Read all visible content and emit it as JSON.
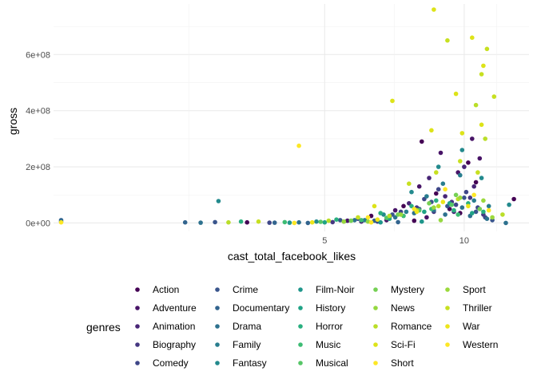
{
  "chart_data": {
    "type": "scatter",
    "title": "",
    "xlabel": "cast_total_facebook_likes",
    "ylabel": "gross",
    "x_scale": "log",
    "xlim": [
      1.3,
      13.8
    ],
    "ylim": [
      -30000000,
      780000000
    ],
    "x_ticks": [
      5,
      10
    ],
    "x_tick_labels": [
      "5",
      "10"
    ],
    "y_ticks": [
      0,
      200000000,
      400000000,
      600000000
    ],
    "y_tick_labels": [
      "0e+00",
      "2e+08",
      "4e+08",
      "6e+08"
    ],
    "grid": true,
    "legend": {
      "title": "genres",
      "position": "bottom",
      "columns": 5,
      "entries": [
        "Action",
        "Adventure",
        "Animation",
        "Biography",
        "Comedy",
        "Crime",
        "Documentary",
        "Drama",
        "Family",
        "Fantasy",
        "Film-Noir",
        "History",
        "Horror",
        "Music",
        "Musical",
        "Mystery",
        "News",
        "Romance",
        "Sci-Fi",
        "Short",
        "Sport",
        "Thriller",
        "War",
        "Western"
      ],
      "colors": [
        "#440154",
        "#481467",
        "#482576",
        "#453781",
        "#3f4788",
        "#39558c",
        "#32648e",
        "#2d718e",
        "#287d8e",
        "#238a8d",
        "#1f968b",
        "#20a386",
        "#29af7f",
        "#3dbc74",
        "#56c667",
        "#75d054",
        "#95d840",
        "#bade28",
        "#dde318",
        "#fde725",
        "#9bd93c",
        "#c7e020",
        "#ede51b",
        "#fde725"
      ]
    },
    "series": [
      {
        "name": "Action",
        "points": [
          [
            3.4,
            2000000
          ],
          [
            6.3,
            25000000
          ],
          [
            7.4,
            60000000
          ],
          [
            8.1,
            290000000
          ],
          [
            8.7,
            105000000
          ],
          [
            9.3,
            50000000
          ],
          [
            10.2,
            215000000
          ],
          [
            10.6,
            145000000
          ],
          [
            12.8,
            85000000
          ],
          [
            9.8,
            35000000
          ],
          [
            7.8,
            8000000
          ]
        ]
      },
      {
        "name": "Adventure",
        "points": [
          [
            5.6,
            8000000
          ],
          [
            7.1,
            45000000
          ],
          [
            8.0,
            130000000
          ],
          [
            8.9,
            250000000
          ],
          [
            9.7,
            180000000
          ],
          [
            10.4,
            300000000
          ],
          [
            10.8,
            230000000
          ],
          [
            8.3,
            20000000
          ],
          [
            6.8,
            10000000
          ]
        ]
      },
      {
        "name": "Animation",
        "points": [
          [
            6.0,
            5000000
          ],
          [
            7.6,
            70000000
          ],
          [
            8.4,
            160000000
          ],
          [
            9.1,
            95000000
          ],
          [
            10.0,
            200000000
          ],
          [
            10.5,
            130000000
          ],
          [
            9.5,
            40000000
          ]
        ]
      },
      {
        "name": "Biography",
        "points": [
          [
            5.2,
            3000000
          ],
          [
            6.9,
            20000000
          ],
          [
            7.9,
            55000000
          ],
          [
            8.6,
            40000000
          ],
          [
            9.4,
            75000000
          ],
          [
            10.3,
            90000000
          ],
          [
            11.0,
            30000000
          ]
        ]
      },
      {
        "name": "Comedy",
        "points": [
          [
            3.8,
            1000000
          ],
          [
            5.9,
            15000000
          ],
          [
            7.3,
            40000000
          ],
          [
            8.2,
            85000000
          ],
          [
            8.8,
            120000000
          ],
          [
            9.6,
            65000000
          ],
          [
            10.1,
            110000000
          ],
          [
            10.7,
            55000000
          ],
          [
            11.1,
            20000000
          ],
          [
            6.5,
            5000000
          ]
        ]
      },
      {
        "name": "Crime",
        "points": [
          [
            2.9,
            3000000
          ],
          [
            5.4,
            10000000
          ],
          [
            7.0,
            30000000
          ],
          [
            8.0,
            50000000
          ],
          [
            8.5,
            75000000
          ],
          [
            9.2,
            60000000
          ],
          [
            10.0,
            90000000
          ],
          [
            10.6,
            40000000
          ],
          [
            11.5,
            10000000
          ]
        ]
      },
      {
        "name": "Documentary",
        "points": [
          [
            1.35,
            10000000
          ],
          [
            2.5,
            2000000
          ],
          [
            3.9,
            1000000
          ],
          [
            4.6,
            0
          ],
          [
            5.5,
            5000000
          ],
          [
            6.4,
            8000000
          ],
          [
            7.2,
            3000000
          ]
        ]
      },
      {
        "name": "Drama",
        "points": [
          [
            1.35,
            5000000
          ],
          [
            2.7,
            1000000
          ],
          [
            4.4,
            2000000
          ],
          [
            5.8,
            10000000
          ],
          [
            7.1,
            20000000
          ],
          [
            7.8,
            35000000
          ],
          [
            8.6,
            45000000
          ],
          [
            9.1,
            30000000
          ],
          [
            9.9,
            55000000
          ],
          [
            10.3,
            25000000
          ],
          [
            11.2,
            15000000
          ],
          [
            12.3,
            0
          ]
        ]
      },
      {
        "name": "Family",
        "points": [
          [
            6.1,
            10000000
          ],
          [
            7.5,
            40000000
          ],
          [
            8.3,
            95000000
          ],
          [
            9.0,
            140000000
          ],
          [
            9.8,
            170000000
          ],
          [
            10.5,
            80000000
          ],
          [
            11.3,
            60000000
          ]
        ]
      },
      {
        "name": "Fantasy",
        "points": [
          [
            2.95,
            78000000
          ],
          [
            4.8,
            5000000
          ],
          [
            6.7,
            30000000
          ],
          [
            7.7,
            110000000
          ],
          [
            8.8,
            200000000
          ],
          [
            9.9,
            260000000
          ],
          [
            10.9,
            160000000
          ],
          [
            12.5,
            65000000
          ]
        ]
      },
      {
        "name": "Film-Noir",
        "points": [
          [
            4.2,
            1000000
          ],
          [
            6.6,
            2000000
          ],
          [
            8.1,
            5000000
          ]
        ]
      },
      {
        "name": "History",
        "points": [
          [
            5.0,
            2000000
          ],
          [
            6.9,
            15000000
          ],
          [
            8.2,
            40000000
          ],
          [
            9.3,
            70000000
          ],
          [
            10.4,
            35000000
          ]
        ]
      },
      {
        "name": "Horror",
        "points": [
          [
            3.3,
            5000000
          ],
          [
            5.3,
            12000000
          ],
          [
            6.6,
            35000000
          ],
          [
            7.7,
            60000000
          ],
          [
            8.7,
            80000000
          ],
          [
            9.5,
            45000000
          ],
          [
            10.2,
            70000000
          ],
          [
            11.0,
            40000000
          ]
        ]
      },
      {
        "name": "Music",
        "points": [
          [
            4.1,
            3000000
          ],
          [
            6.0,
            10000000
          ],
          [
            7.4,
            25000000
          ],
          [
            8.5,
            50000000
          ],
          [
            9.7,
            30000000
          ]
        ]
      },
      {
        "name": "Musical",
        "points": [
          [
            4.9,
            4000000
          ],
          [
            6.8,
            18000000
          ],
          [
            8.0,
            45000000
          ],
          [
            9.4,
            65000000
          ]
        ]
      },
      {
        "name": "Mystery",
        "points": [
          [
            5.7,
            8000000
          ],
          [
            7.2,
            30000000
          ],
          [
            8.4,
            70000000
          ],
          [
            9.6,
            100000000
          ],
          [
            10.8,
            50000000
          ]
        ]
      },
      {
        "name": "News",
        "points": [
          [
            6.2,
            5000000
          ],
          [
            8.9,
            10000000
          ]
        ]
      },
      {
        "name": "Romance",
        "points": [
          [
            3.1,
            2000000
          ],
          [
            5.1,
            8000000
          ],
          [
            6.9,
            25000000
          ],
          [
            7.9,
            45000000
          ],
          [
            8.8,
            60000000
          ],
          [
            9.7,
            85000000
          ],
          [
            10.6,
            420000000
          ],
          [
            11.1,
            300000000
          ],
          [
            12.1,
            30000000
          ]
        ]
      },
      {
        "name": "Sci-Fi",
        "points": [
          [
            6.4,
            60000000
          ],
          [
            7.0,
            435000000
          ],
          [
            8.5,
            330000000
          ],
          [
            9.6,
            460000000
          ],
          [
            10.4,
            660000000
          ],
          [
            11.0,
            560000000
          ],
          [
            8.6,
            760000000
          ],
          [
            9.9,
            320000000
          ],
          [
            10.9,
            350000000
          ]
        ]
      },
      {
        "name": "Short",
        "points": [
          [
            4.3,
            0
          ],
          [
            6.3,
            2000000
          ]
        ]
      },
      {
        "name": "Sport",
        "points": [
          [
            5.5,
            5000000
          ],
          [
            7.3,
            30000000
          ],
          [
            8.6,
            55000000
          ],
          [
            9.8,
            90000000
          ],
          [
            11.0,
            80000000
          ],
          [
            11.5,
            20000000
          ]
        ]
      },
      {
        "name": "Thriller",
        "points": [
          [
            3.6,
            5000000
          ],
          [
            5.9,
            20000000
          ],
          [
            7.6,
            140000000
          ],
          [
            8.7,
            180000000
          ],
          [
            9.2,
            650000000
          ],
          [
            9.8,
            220000000
          ],
          [
            10.7,
            180000000
          ],
          [
            11.2,
            620000000
          ],
          [
            10.9,
            530000000
          ],
          [
            11.6,
            450000000
          ]
        ]
      },
      {
        "name": "War",
        "points": [
          [
            4.7,
            2000000
          ],
          [
            6.5,
            12000000
          ],
          [
            7.9,
            40000000
          ],
          [
            9.0,
            75000000
          ],
          [
            10.2,
            60000000
          ]
        ]
      },
      {
        "name": "Western",
        "points": [
          [
            1.35,
            2000000
          ],
          [
            4.4,
            275000000
          ],
          [
            6.2,
            20000000
          ],
          [
            7.8,
            50000000
          ],
          [
            9.1,
            120000000
          ],
          [
            10.5,
            100000000
          ],
          [
            11.3,
            45000000
          ]
        ]
      }
    ]
  }
}
